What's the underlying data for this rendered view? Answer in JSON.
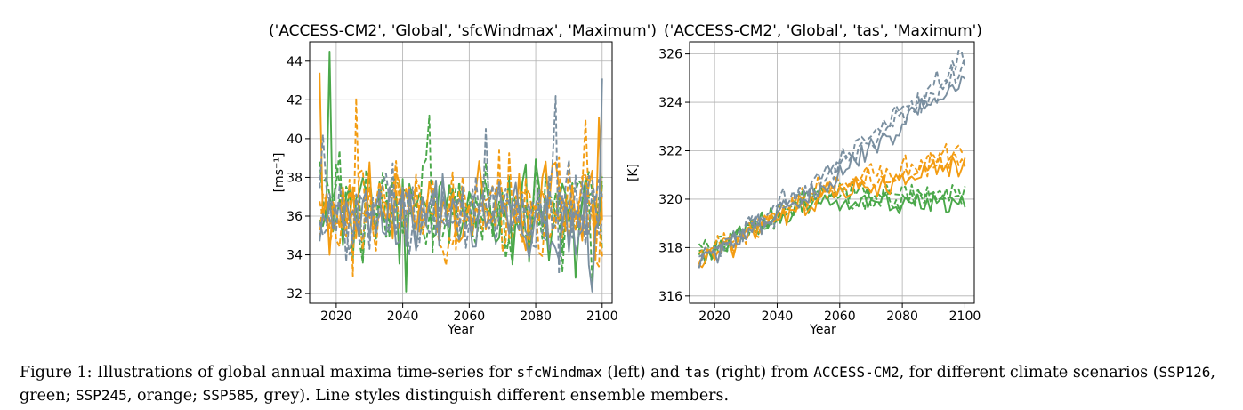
{
  "chart_data": [
    {
      "type": "line",
      "title": "('ACCESS-CM2', 'Global', 'sfcWindmax', 'Maximum')",
      "xlabel": "Year",
      "ylabel": "[ms⁻¹]",
      "xlim": [
        2012,
        2103
      ],
      "ylim": [
        31.5,
        45.0
      ],
      "xticks": [
        "2020",
        "2040",
        "2060",
        "2080",
        "2100"
      ],
      "yticks": [
        "32",
        "34",
        "36",
        "38",
        "40",
        "42",
        "44"
      ],
      "grid": true,
      "x": {
        "start": 2015,
        "end": 2100
      },
      "series": [
        {
          "color": "#4aa84a",
          "dash": "solid",
          "base": 36.3,
          "amp": 1.6,
          "seed": 11,
          "spikes": [
            [
              2018,
              44.5
            ],
            [
              2041,
              32.1
            ],
            [
              2019,
              35.2
            ]
          ]
        },
        {
          "color": "#4aa84a",
          "dash": "dashed",
          "base": 36.5,
          "amp": 1.5,
          "seed": 23,
          "spikes": [
            [
              2048,
              41.2
            ],
            [
              2097,
              32.6
            ]
          ]
        },
        {
          "color": "#4aa84a",
          "dash": "dashed",
          "base": 36.2,
          "amp": 1.4,
          "seed": 37,
          "spikes": [
            [
              2028,
              33.6
            ],
            [
              2088,
              33.1
            ]
          ]
        },
        {
          "color": "#f39c12",
          "dash": "solid",
          "base": 36.2,
          "amp": 1.5,
          "seed": 41,
          "spikes": [
            [
              2015,
              43.4
            ],
            [
              2018,
              34.0
            ],
            [
              2099,
              41.1
            ]
          ]
        },
        {
          "color": "#f39c12",
          "dash": "dashed",
          "base": 36.4,
          "amp": 1.5,
          "seed": 53,
          "spikes": [
            [
              2026,
              42.1
            ],
            [
              2025,
              32.9
            ]
          ]
        },
        {
          "color": "#f39c12",
          "dash": "dashed",
          "base": 36.3,
          "amp": 1.4,
          "seed": 67,
          "spikes": [
            [
              2095,
              41.0
            ],
            [
              2099,
              33.4
            ]
          ]
        },
        {
          "color": "#7a8fa0",
          "dash": "solid",
          "base": 36.1,
          "amp": 1.4,
          "seed": 71,
          "spikes": [
            [
              2015,
              34.7
            ],
            [
              2097,
              32.1
            ],
            [
              2100,
              43.1
            ]
          ]
        },
        {
          "color": "#7a8fa0",
          "dash": "dashed",
          "base": 36.3,
          "amp": 1.5,
          "seed": 83,
          "spikes": [
            [
              2086,
              42.2
            ],
            [
              2087,
              33.0
            ]
          ]
        },
        {
          "color": "#7a8fa0",
          "dash": "dashed",
          "base": 36.2,
          "amp": 1.3,
          "seed": 97,
          "spikes": [
            [
              2065,
              40.5
            ],
            [
              2016,
              40.2
            ]
          ]
        }
      ]
    },
    {
      "type": "line",
      "title": "('ACCESS-CM2', 'Global', 'tas', 'Maximum')",
      "xlabel": "Year",
      "ylabel": "[K]",
      "xlim": [
        2012,
        2103
      ],
      "ylim": [
        315.7,
        326.5
      ],
      "xticks": [
        "2020",
        "2040",
        "2060",
        "2080",
        "2100"
      ],
      "yticks": [
        "316",
        "318",
        "320",
        "322",
        "324",
        "326"
      ],
      "grid": true,
      "x": {
        "start": 2015,
        "end": 2100
      },
      "series": [
        {
          "color": "#4aa84a",
          "dash": "solid",
          "start": 317.6,
          "mid": 320.0,
          "end": 319.7,
          "amp": 0.45,
          "seed": 5
        },
        {
          "color": "#4aa84a",
          "dash": "dashed",
          "start": 317.7,
          "mid": 320.1,
          "end": 320.0,
          "amp": 0.45,
          "seed": 17
        },
        {
          "color": "#4aa84a",
          "dash": "dashed",
          "start": 317.8,
          "mid": 320.2,
          "end": 320.2,
          "amp": 0.45,
          "seed": 29
        },
        {
          "color": "#f39c12",
          "dash": "solid",
          "start": 317.4,
          "mid": 320.1,
          "end": 321.4,
          "amp": 0.45,
          "seed": 31
        },
        {
          "color": "#f39c12",
          "dash": "dashed",
          "start": 317.5,
          "mid": 320.3,
          "end": 321.8,
          "amp": 0.45,
          "seed": 43
        },
        {
          "color": "#f39c12",
          "dash": "dashed",
          "start": 317.6,
          "mid": 320.4,
          "end": 321.9,
          "amp": 0.45,
          "seed": 59
        },
        {
          "color": "#7a8fa0",
          "dash": "solid",
          "start": 317.3,
          "mid": 320.4,
          "end": 325.0,
          "amp": 0.45,
          "seed": 61
        },
        {
          "color": "#7a8fa0",
          "dash": "dashed",
          "start": 317.4,
          "mid": 320.6,
          "end": 325.4,
          "amp": 0.45,
          "seed": 73
        },
        {
          "color": "#7a8fa0",
          "dash": "dashed",
          "start": 317.5,
          "mid": 320.8,
          "end": 325.8,
          "amp": 0.45,
          "seed": 89
        }
      ]
    }
  ],
  "caption": {
    "p1": "Figure 1: Illustrations of global annual maxima time-series for ",
    "c1": "sfcWindmax",
    "p2": " (left) and ",
    "c2": "tas",
    "p3": " (right) from ",
    "c3": "ACCESS-CM2",
    "p4": ", for different climate scenarios (",
    "c4": "SSP126",
    "p5": ", green; ",
    "c5": "SSP245",
    "p6": ", orange; ",
    "c6": "SSP585",
    "p7": ", grey). Line styles distinguish different ensemble members."
  }
}
